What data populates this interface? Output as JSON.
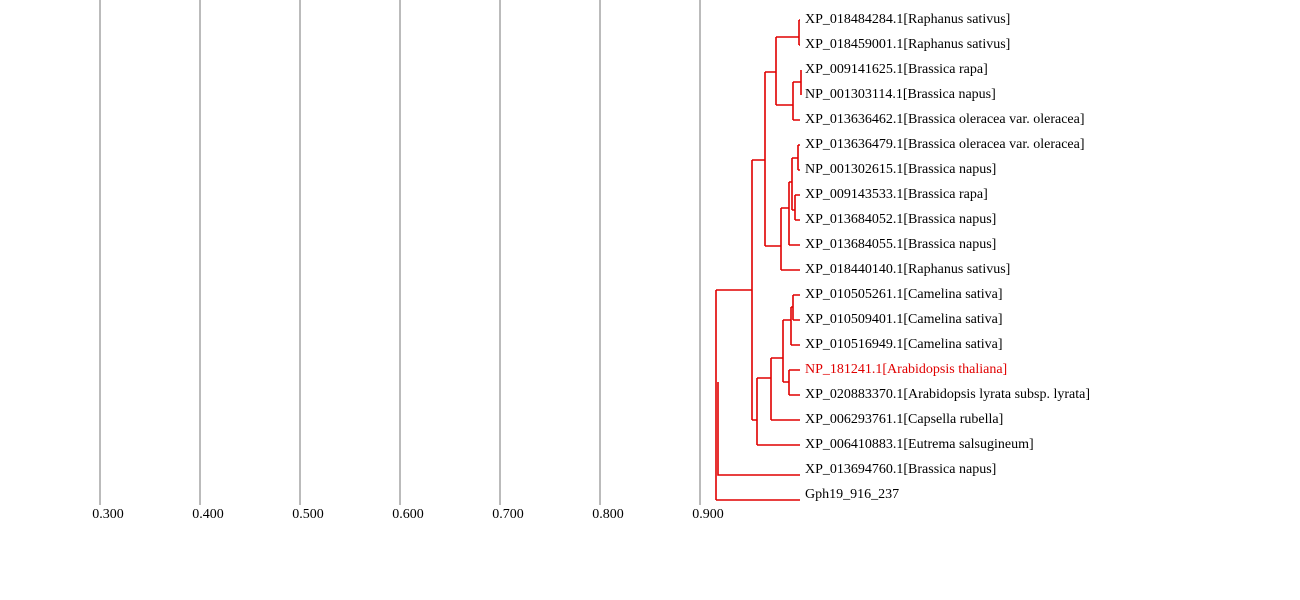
{
  "axis": {
    "range": [
      0.3,
      0.9
    ],
    "ticks": [
      {
        "value": 0.3,
        "label": "0.300"
      },
      {
        "value": 0.4,
        "label": "0.400"
      },
      {
        "value": 0.5,
        "label": "0.500"
      },
      {
        "value": 0.6,
        "label": "0.600"
      },
      {
        "value": 0.7,
        "label": "0.700"
      },
      {
        "value": 0.8,
        "label": "0.800"
      },
      {
        "value": 0.9,
        "label": "0.900"
      }
    ]
  },
  "leaves": [
    {
      "label": "XP_018484284.1[Raphanus sativus]",
      "color": "#000000"
    },
    {
      "label": "XP_018459001.1[Raphanus sativus]",
      "color": "#000000"
    },
    {
      "label": "XP_009141625.1[Brassica rapa]",
      "color": "#000000"
    },
    {
      "label": "NP_001303114.1[Brassica napus]",
      "color": "#000000"
    },
    {
      "label": "XP_013636462.1[Brassica oleracea var. oleracea]",
      "color": "#000000"
    },
    {
      "label": "XP_013636479.1[Brassica oleracea var. oleracea]",
      "color": "#000000"
    },
    {
      "label": "NP_001302615.1[Brassica napus]",
      "color": "#000000"
    },
    {
      "label": "XP_009143533.1[Brassica rapa]",
      "color": "#000000"
    },
    {
      "label": "XP_013684052.1[Brassica napus]",
      "color": "#000000"
    },
    {
      "label": "XP_013684055.1[Brassica napus]",
      "color": "#000000"
    },
    {
      "label": "XP_018440140.1[Raphanus sativus]",
      "color": "#000000"
    },
    {
      "label": "XP_010505261.1[Camelina sativa]",
      "color": "#000000"
    },
    {
      "label": "XP_010509401.1[Camelina sativa]",
      "color": "#000000"
    },
    {
      "label": "XP_010516949.1[Camelina sativa]",
      "color": "#000000"
    },
    {
      "label": "NP_181241.1[Arabidopsis thaliana]",
      "color": "#e00000"
    },
    {
      "label": "XP_020883370.1[Arabidopsis lyrata subsp. lyrata]",
      "color": "#000000"
    },
    {
      "label": "XP_006293761.1[Capsella rubella]",
      "color": "#000000"
    },
    {
      "label": "XP_006410883.1[Eutrema salsugineum]",
      "color": "#000000"
    },
    {
      "label": "XP_013694760.1[Brassica napus]",
      "color": "#000000"
    },
    {
      "label": "Gph19_916_237",
      "color": "#000000"
    }
  ]
}
